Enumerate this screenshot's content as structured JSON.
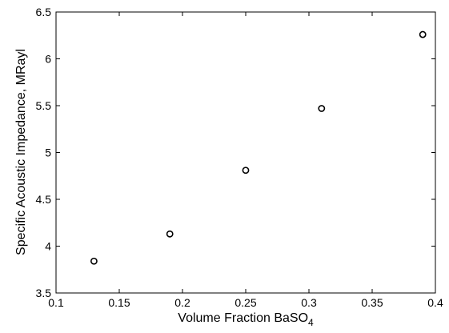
{
  "chart_data": {
    "type": "scatter",
    "xlabel": "Volume Fraction BaSO",
    "xlabel_subscript": "4",
    "ylabel": "Specific Acoustic Impedance, MRayl",
    "xlim": [
      0.1,
      0.4
    ],
    "ylim": [
      3.5,
      6.5
    ],
    "x_ticks": [
      "0.1",
      "0.15",
      "0.2",
      "0.25",
      "0.3",
      "0.35",
      "0.4"
    ],
    "y_ticks": [
      "3.5",
      "4",
      "4.5",
      "5",
      "5.5",
      "6",
      "6.5"
    ],
    "grid": false,
    "marker": "circle-open",
    "series": [
      {
        "points": [
          {
            "x": 0.13,
            "y": 3.84
          },
          {
            "x": 0.19,
            "y": 4.13
          },
          {
            "x": 0.25,
            "y": 4.81
          },
          {
            "x": 0.31,
            "y": 5.47
          },
          {
            "x": 0.39,
            "y": 6.26
          }
        ]
      }
    ],
    "colors": {
      "axis": "#000000",
      "marker": "#000000",
      "background": "#ffffff"
    }
  }
}
